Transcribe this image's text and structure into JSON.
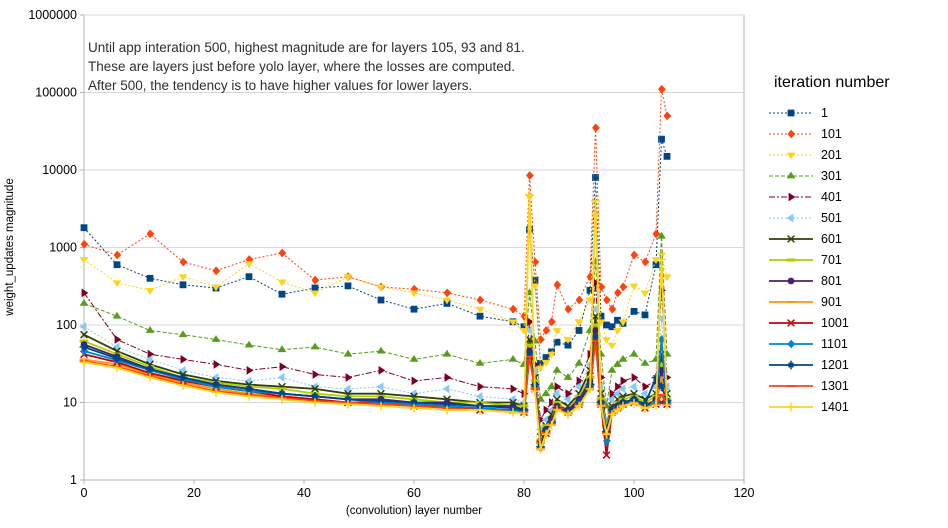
{
  "annotation": {
    "lines": [
      "Until app interation 500, highest magnitude are for layers 105, 93 and 81.",
      "These are layers just before yolo layer, where the losses are computed.",
      "After 500, the tendency is to have higher values for lower layers."
    ]
  },
  "legend": {
    "title": "iteration number"
  },
  "axes": {
    "x_label": "(convolution) layer number",
    "y_label": "weight_updates magnitude",
    "x_ticks": [
      0,
      20,
      40,
      60,
      80,
      100,
      120
    ],
    "y_ticks": [
      1,
      10,
      100,
      1000,
      10000,
      100000,
      1000000
    ]
  },
  "colors": {
    "grid": "#d9d9d9",
    "frame": "#b3b3b3",
    "axis_text": "#000000"
  },
  "chart_data": {
    "type": "scatter-line",
    "title": "",
    "xlabel": "(convolution) layer number",
    "ylabel": "weight_updates magnitude",
    "x_range": [
      0,
      120
    ],
    "y_range": [
      1,
      1000000
    ],
    "y_scale": "log",
    "grid": "horizontal-major",
    "legend_position": "right",
    "legend_title": "iteration number",
    "x": [
      0,
      6,
      12,
      18,
      24,
      30,
      36,
      42,
      48,
      54,
      60,
      66,
      72,
      78,
      80,
      81,
      82,
      83,
      84,
      85,
      86,
      88,
      90,
      92,
      93,
      94,
      95,
      96,
      97,
      98,
      100,
      102,
      104,
      105,
      106
    ],
    "series": [
      {
        "name": "1",
        "color": "#004586",
        "marker": "square",
        "dash": "2 2",
        "width": 1,
        "values": [
          1800,
          600,
          400,
          330,
          300,
          420,
          250,
          300,
          320,
          210,
          160,
          190,
          130,
          110,
          95,
          1700,
          380,
          32,
          38,
          45,
          60,
          55,
          85,
          280,
          8000,
          130,
          100,
          95,
          115,
          105,
          150,
          135,
          600,
          25000,
          15000
        ]
      },
      {
        "name": "101",
        "color": "#FF420E",
        "marker": "diamond",
        "dash": "2 2",
        "width": 1,
        "values": [
          1100,
          800,
          1500,
          650,
          500,
          700,
          850,
          380,
          420,
          310,
          290,
          260,
          210,
          160,
          130,
          8500,
          650,
          65,
          85,
          110,
          330,
          160,
          210,
          420,
          35000,
          310,
          210,
          160,
          260,
          310,
          800,
          650,
          1500,
          110000,
          50000
        ]
      },
      {
        "name": "201",
        "color": "#FFD320",
        "marker": "triangle-down",
        "dash": "2 2",
        "width": 1,
        "values": [
          700,
          350,
          280,
          420,
          310,
          620,
          360,
          260,
          420,
          310,
          260,
          210,
          160,
          110,
          85,
          4500,
          320,
          28,
          33,
          42,
          85,
          65,
          110,
          210,
          2600,
          110,
          65,
          55,
          85,
          110,
          320,
          260,
          700,
          800,
          420
        ]
      },
      {
        "name": "301",
        "color": "#579D1C",
        "marker": "triangle-up",
        "dash": "4 2",
        "width": 1,
        "values": [
          190,
          130,
          85,
          75,
          65,
          55,
          48,
          52,
          42,
          46,
          36,
          42,
          32,
          36,
          31,
          260,
          62,
          11,
          13,
          16,
          26,
          21,
          32,
          85,
          650,
          42,
          9,
          26,
          31,
          36,
          42,
          32,
          36,
          1400,
          42
        ]
      },
      {
        "name": "401",
        "color": "#7E0021",
        "marker": "triangle-right",
        "dash": "6 2 2 2",
        "width": 1,
        "values": [
          260,
          65,
          42,
          36,
          31,
          26,
          29,
          23,
          21,
          26,
          19,
          21,
          16,
          15,
          13,
          110,
          31,
          6,
          8,
          10,
          16,
          13,
          19,
          42,
          350,
          21,
          5,
          13,
          16,
          19,
          21,
          16,
          19,
          280,
          21
        ]
      },
      {
        "name": "501",
        "color": "#83CAFF",
        "marker": "triangle-left",
        "dash": "2 2",
        "width": 1,
        "values": [
          95,
          52,
          36,
          26,
          21,
          19,
          21,
          16,
          15,
          16,
          13,
          15,
          12,
          11,
          10,
          85,
          26,
          4.5,
          6,
          8,
          13,
          11,
          16,
          31,
          160,
          16,
          6,
          11,
          13,
          15,
          16,
          13,
          16,
          120,
          16
        ]
      },
      {
        "name": "601",
        "color": "#314004",
        "marker": "x",
        "dash": "",
        "width": 1.8,
        "values": [
          75,
          46,
          31,
          23,
          19,
          17,
          16,
          15,
          13,
          13,
          12,
          11,
          10,
          10,
          9,
          65,
          21,
          3.6,
          5,
          7,
          11,
          9,
          13,
          26,
          130,
          13,
          5,
          9,
          11,
          12,
          13,
          11,
          13,
          42,
          13
        ]
      },
      {
        "name": "701",
        "color": "#AECF00",
        "marker": "hbar",
        "dash": "",
        "width": 1.8,
        "values": [
          62,
          42,
          29,
          21,
          18,
          16,
          15,
          13,
          12,
          12,
          11,
          10,
          10,
          9,
          9,
          55,
          19,
          3.2,
          5,
          6,
          10,
          8,
          12,
          21,
          100,
          11,
          5,
          8,
          10,
          11,
          12,
          10,
          12,
          31,
          11
        ]
      },
      {
        "name": "801",
        "color": "#4B1F6F",
        "marker": "circle",
        "dash": "",
        "width": 1.8,
        "values": [
          56,
          39,
          27,
          20,
          17,
          15,
          13,
          12,
          11,
          11,
          10,
          10,
          9,
          9,
          8,
          46,
          17,
          3,
          4.5,
          6,
          9,
          8,
          11,
          19,
          85,
          10,
          4.5,
          8,
          9,
          10,
          11,
          9,
          11,
          26,
          10
        ]
      },
      {
        "name": "901",
        "color": "#FF950E",
        "marker": "dash",
        "dash": "",
        "width": 1.8,
        "values": [
          36,
          31,
          23,
          18,
          15,
          13,
          12,
          11,
          10,
          10,
          9,
          9,
          8,
          8,
          8,
          42,
          16,
          3,
          4,
          5.5,
          9,
          7.5,
          10,
          17,
          75,
          10,
          4,
          7.5,
          8.5,
          9.5,
          10,
          8.5,
          10,
          21,
          9.5
        ]
      },
      {
        "name": "1001",
        "color": "#C5000B",
        "marker": "x",
        "dash": "",
        "width": 1.8,
        "values": [
          42,
          33,
          24,
          19,
          16,
          14,
          12,
          11,
          10,
          10,
          9,
          9,
          8,
          8,
          7.5,
          40,
          15,
          2.9,
          4,
          5.5,
          8.5,
          7.5,
          9.5,
          16,
          65,
          9.5,
          2.1,
          7.5,
          8.5,
          9.5,
          10,
          8.5,
          9.5,
          10,
          9.5
        ]
      },
      {
        "name": "1101",
        "color": "#0084D1",
        "marker": "diamond",
        "dash": "",
        "width": 1.8,
        "values": [
          46,
          35,
          26,
          20,
          16,
          14,
          13,
          12,
          11,
          10,
          9.5,
          9,
          8.5,
          8,
          8,
          42,
          16,
          2.6,
          4.2,
          5.5,
          8.5,
          7.5,
          10,
          16,
          70,
          10,
          3.2,
          7.5,
          8.5,
          9.5,
          10.5,
          9,
          10,
          65,
          10
        ]
      },
      {
        "name": "1201",
        "color": "#004586",
        "marker": "asterisk",
        "dash": "",
        "width": 1.8,
        "values": [
          52,
          37,
          27,
          21,
          17,
          15,
          13,
          12,
          11,
          10.5,
          10,
          9.5,
          9,
          8.5,
          8,
          44,
          17,
          2.7,
          4.3,
          5.6,
          8.6,
          7.6,
          10,
          17,
          72,
          10,
          4.2,
          8,
          9,
          10,
          11,
          9.5,
          21,
          16,
          10.5
        ]
      },
      {
        "name": "1301",
        "color": "#FF420E",
        "marker": "dash",
        "dash": "",
        "width": 1.8,
        "values": [
          34,
          29,
          22,
          17,
          14,
          12.5,
          11.5,
          10.5,
          10,
          9.5,
          9,
          8.5,
          8,
          7.5,
          7.5,
          39,
          15,
          2.5,
          4,
          5.2,
          8.2,
          7.2,
          9.2,
          15,
          62,
          9.2,
          4,
          7.2,
          8.2,
          9.2,
          10,
          8.5,
          9.5,
          12.5,
          9.5
        ]
      },
      {
        "name": "1401",
        "color": "#FFD320",
        "marker": "plus",
        "dash": "",
        "width": 1.8,
        "values": [
          33,
          28,
          21,
          16.5,
          13.5,
          12,
          11,
          10,
          9.5,
          9,
          8.5,
          8,
          8,
          7.5,
          7.2,
          4800,
          14,
          2.5,
          3.9,
          5.1,
          8,
          7,
          9,
          15,
          4000,
          9,
          3.9,
          7,
          8,
          9,
          9.8,
          8.4,
          9.2,
          700,
          9.2
        ]
      }
    ]
  }
}
